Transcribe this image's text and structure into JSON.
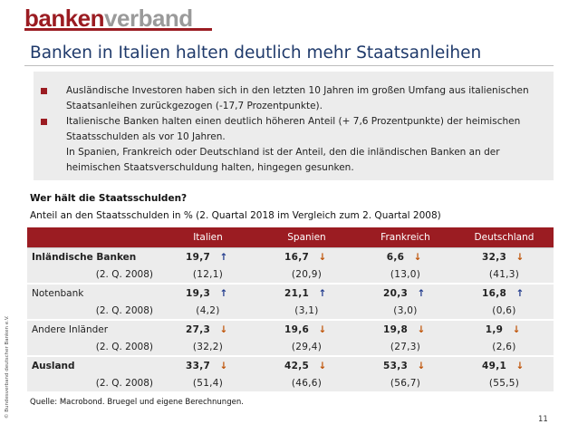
{
  "logo": {
    "part1": "banken",
    "part2": "verband"
  },
  "title": "Banken in Italien halten deutlich mehr Staatsanleihen",
  "bullets": [
    "Ausländische Investoren haben sich in den letzten 10 Jahren im großen Umfang aus italienischen Staatsanleihen zurückgezogen (-17,7 Prozentpunkte).",
    "Italienische Banken halten einen deutlich höheren Anteil (+ 7,6 Prozentpunkte) der heimischen Staatsschulden als vor 10 Jahren.",
    "In Spanien, Frankreich oder Deutschland ist der Anteil, den die inländischen Banken an der heimischen Staatsverschuldung halten, hingegen gesunken."
  ],
  "question_title": "Wer hält die Staatsschulden?",
  "question_subtitle": "Anteil an den Staatsschulden in % (2. Quartal 2018 im Vergleich zum 2. Quartal 2008)",
  "table": {
    "columns": [
      "Italien",
      "Spanien",
      "Frankreich",
      "Deutschland"
    ],
    "prev_label": "(2. Q. 2008)",
    "rows": [
      {
        "label": "Inländische Banken",
        "label_bold": true,
        "current": [
          "19,7",
          "16,7",
          "6,6",
          "32,3"
        ],
        "trend": [
          "up",
          "down",
          "down",
          "down"
        ],
        "previous": [
          "(12,1)",
          "(20,9)",
          "(13,0)",
          "(41,3)"
        ]
      },
      {
        "label": "Notenbank",
        "label_bold": false,
        "current": [
          "19,3",
          "21,1",
          "20,3",
          "16,8"
        ],
        "trend": [
          "up",
          "up",
          "up",
          "up"
        ],
        "previous": [
          "(4,2)",
          "(3,1)",
          "(3,0)",
          "(0,6)"
        ]
      },
      {
        "label": "Andere Inländer",
        "label_bold": false,
        "current": [
          "27,3",
          "19,6",
          "19,8",
          "1,9"
        ],
        "trend": [
          "down",
          "down",
          "down",
          "down"
        ],
        "previous": [
          "(32,2)",
          "(29,4)",
          "(27,3)",
          "(2,6)"
        ]
      },
      {
        "label": "Ausland",
        "label_bold": true,
        "current": [
          "33,7",
          "42,5",
          "53,3",
          "49,1"
        ],
        "trend": [
          "down",
          "down",
          "down",
          "down"
        ],
        "previous": [
          "(51,4)",
          "(46,6)",
          "(56,7)",
          "(55,5)"
        ]
      }
    ]
  },
  "source": "Quelle: Macrobond. Bruegel und eigene Berechnungen.",
  "page_number": "11",
  "copyright": "© Bundesverband deutscher Banken e.V.",
  "colors": {
    "brand": "#9b1c22",
    "title": "#1f3a6b",
    "arrow_up": "#1f3a8c",
    "arrow_down": "#c0550a"
  }
}
